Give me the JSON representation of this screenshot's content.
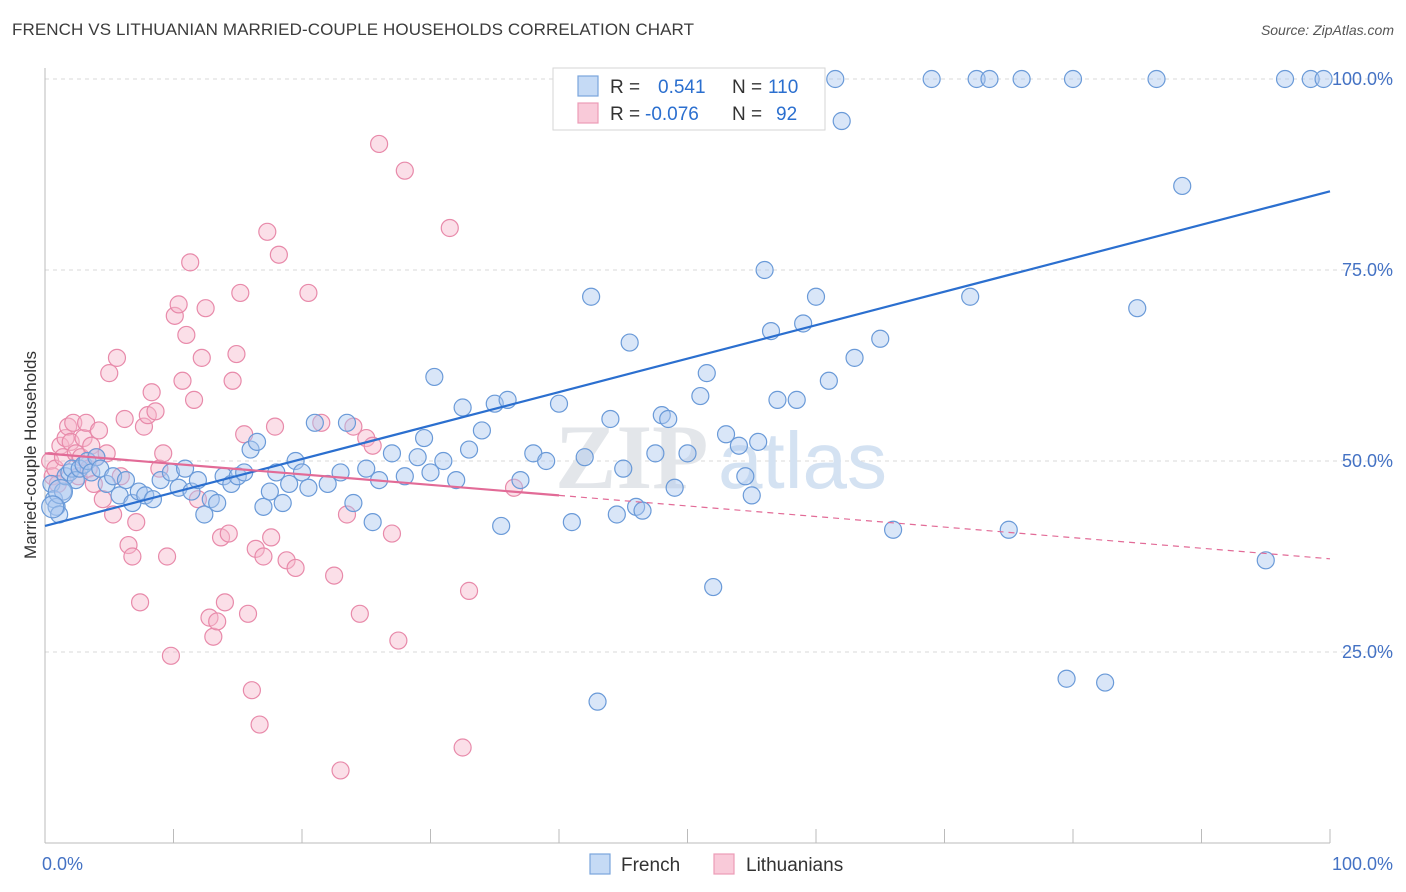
{
  "title": "FRENCH VS LITHUANIAN MARRIED-COUPLE HOUSEHOLDS CORRELATION CHART",
  "source": "Source: ZipAtlas.com",
  "watermark": {
    "zip": "ZIP",
    "atlas": "atlas"
  },
  "legend_top": {
    "french": {
      "r_label": "R =",
      "r_value": "0.541",
      "n_label": "N =",
      "n_value": "110"
    },
    "lithuanians": {
      "r_label": "R =",
      "r_value": "-0.076",
      "n_label": "N =",
      "n_value": "92"
    }
  },
  "legend_bottom": {
    "french": "French",
    "lithuanians": "Lithuanians"
  },
  "colors": {
    "french_fill": "#aac8f0",
    "french_stroke": "#6a9ad8",
    "french_line": "#2b6fcf",
    "lith_fill": "#f6b8cc",
    "lith_stroke": "#e88aaa",
    "lith_line": "#e26b97",
    "tick_text": "#4472c4",
    "grid": "#d8d8d8"
  },
  "chart_data": {
    "type": "scatter",
    "title": "FRENCH VS LITHUANIAN MARRIED-COUPLE HOUSEHOLDS CORRELATION CHART",
    "xlabel": "",
    "ylabel": "Married-couple Households",
    "xlim": [
      0,
      100
    ],
    "ylim": [
      0,
      102
    ],
    "x_tick_labels": [
      "0.0%",
      "100.0%"
    ],
    "y_ticks": [
      25,
      50,
      75,
      100
    ],
    "y_tick_labels": [
      "25.0%",
      "50.0%",
      "75.0%",
      "100.0%"
    ],
    "grid": true,
    "series": [
      {
        "name": "French",
        "r": 0.541,
        "n": 110,
        "trend": {
          "x": [
            0,
            100
          ],
          "y": [
            41.5,
            85.3
          ],
          "style": "solid"
        },
        "points": [
          [
            0.5,
            47
          ],
          [
            0.7,
            45
          ],
          [
            0.9,
            44
          ],
          [
            1.1,
            43
          ],
          [
            1.4,
            46
          ],
          [
            1.6,
            48
          ],
          [
            1.9,
            48.5
          ],
          [
            2.1,
            49
          ],
          [
            2.4,
            47.5
          ],
          [
            2.7,
            49
          ],
          [
            3.0,
            49.5
          ],
          [
            3.3,
            50
          ],
          [
            3.6,
            48.5
          ],
          [
            4.0,
            50.5
          ],
          [
            4.3,
            49
          ],
          [
            4.8,
            47
          ],
          [
            5.3,
            48
          ],
          [
            5.8,
            45.5
          ],
          [
            6.3,
            47.5
          ],
          [
            6.8,
            44.5
          ],
          [
            7.3,
            46
          ],
          [
            7.8,
            45.5
          ],
          [
            8.4,
            45
          ],
          [
            9.0,
            47.5
          ],
          [
            9.8,
            48.5
          ],
          [
            10.4,
            46.5
          ],
          [
            10.9,
            49
          ],
          [
            11.4,
            46
          ],
          [
            11.9,
            47.5
          ],
          [
            12.4,
            43
          ],
          [
            12.9,
            45
          ],
          [
            13.4,
            44.5
          ],
          [
            13.9,
            48
          ],
          [
            14.5,
            47
          ],
          [
            15.0,
            48
          ],
          [
            15.5,
            48.5
          ],
          [
            16.0,
            51.5
          ],
          [
            16.5,
            52.5
          ],
          [
            17.0,
            44
          ],
          [
            17.5,
            46
          ],
          [
            18.0,
            48.5
          ],
          [
            18.5,
            44.5
          ],
          [
            19.0,
            47
          ],
          [
            19.5,
            50
          ],
          [
            20.0,
            48.5
          ],
          [
            20.5,
            46.5
          ],
          [
            21.0,
            55
          ],
          [
            22.0,
            47
          ],
          [
            23.0,
            48.5
          ],
          [
            23.5,
            55
          ],
          [
            24.0,
            44.5
          ],
          [
            25.0,
            49
          ],
          [
            25.5,
            42
          ],
          [
            26.0,
            47.5
          ],
          [
            27.0,
            51
          ],
          [
            28.0,
            48
          ],
          [
            29.0,
            50.5
          ],
          [
            29.5,
            53
          ],
          [
            30.0,
            48.5
          ],
          [
            30.3,
            61
          ],
          [
            31.0,
            50
          ],
          [
            32.0,
            47.5
          ],
          [
            32.5,
            57
          ],
          [
            33.0,
            51.5
          ],
          [
            34.0,
            54
          ],
          [
            35.0,
            57.5
          ],
          [
            35.5,
            41.5
          ],
          [
            36.0,
            58
          ],
          [
            37.0,
            47.5
          ],
          [
            38.0,
            51
          ],
          [
            39.0,
            50
          ],
          [
            40.0,
            57.5
          ],
          [
            41.0,
            42
          ],
          [
            42.0,
            50.5
          ],
          [
            42.5,
            71.5
          ],
          [
            43.0,
            18.5
          ],
          [
            44.0,
            55.5
          ],
          [
            44.5,
            43
          ],
          [
            45.0,
            49
          ],
          [
            45.5,
            65.5
          ],
          [
            46.0,
            44
          ],
          [
            46.5,
            43.5
          ],
          [
            47.5,
            51
          ],
          [
            48.0,
            56
          ],
          [
            48.5,
            55.5
          ],
          [
            49.0,
            46.5
          ],
          [
            50.0,
            51
          ],
          [
            51.0,
            58.5
          ],
          [
            51.5,
            61.5
          ],
          [
            52.0,
            33.5
          ],
          [
            53.0,
            53.5
          ],
          [
            54.0,
            52
          ],
          [
            54.5,
            48
          ],
          [
            55.0,
            45.5
          ],
          [
            55.5,
            52.5
          ],
          [
            56.0,
            75
          ],
          [
            56.5,
            67
          ],
          [
            57.0,
            58
          ],
          [
            58.5,
            58
          ],
          [
            59.0,
            68
          ],
          [
            60.0,
            71.5
          ],
          [
            61.0,
            60.5
          ],
          [
            61.5,
            100
          ],
          [
            62.0,
            94.5
          ],
          [
            63.0,
            63.5
          ],
          [
            65.0,
            66
          ],
          [
            66.0,
            41
          ],
          [
            69.0,
            100
          ],
          [
            72.0,
            71.5
          ],
          [
            72.5,
            100
          ],
          [
            73.5,
            100
          ],
          [
            75.0,
            41
          ],
          [
            76.0,
            100
          ],
          [
            79.5,
            21.5
          ],
          [
            80.0,
            100
          ],
          [
            82.5,
            21
          ],
          [
            85.0,
            70
          ],
          [
            86.5,
            100
          ],
          [
            88.5,
            86
          ],
          [
            95.0,
            37
          ],
          [
            96.5,
            100
          ],
          [
            98.5,
            100
          ],
          [
            99.5,
            100
          ]
        ]
      },
      {
        "name": "Lithuanians",
        "r": -0.076,
        "n": 92,
        "trend": {
          "x": [
            0,
            40,
            100
          ],
          "y": [
            51,
            45.5,
            37.2
          ],
          "style": "solid-then-dashed"
        },
        "points": [
          [
            0.4,
            50
          ],
          [
            0.6,
            48
          ],
          [
            0.8,
            49
          ],
          [
            1.0,
            47
          ],
          [
            1.2,
            52
          ],
          [
            1.4,
            50.5
          ],
          [
            1.6,
            53
          ],
          [
            1.8,
            54.5
          ],
          [
            2.0,
            52.5
          ],
          [
            2.2,
            55
          ],
          [
            2.4,
            51
          ],
          [
            2.6,
            48
          ],
          [
            2.8,
            50.5
          ],
          [
            3.0,
            53
          ],
          [
            3.2,
            55
          ],
          [
            3.4,
            49
          ],
          [
            3.6,
            52
          ],
          [
            3.8,
            47
          ],
          [
            4.0,
            50.5
          ],
          [
            4.2,
            54
          ],
          [
            4.5,
            45
          ],
          [
            4.8,
            51
          ],
          [
            5.0,
            61.5
          ],
          [
            5.3,
            43
          ],
          [
            5.6,
            63.5
          ],
          [
            5.9,
            48
          ],
          [
            6.2,
            55.5
          ],
          [
            6.5,
            39
          ],
          [
            6.8,
            37.5
          ],
          [
            7.1,
            42
          ],
          [
            7.4,
            31.5
          ],
          [
            7.7,
            54.5
          ],
          [
            8.0,
            56
          ],
          [
            8.3,
            59
          ],
          [
            8.6,
            56.5
          ],
          [
            8.9,
            49
          ],
          [
            9.2,
            51
          ],
          [
            9.5,
            37.5
          ],
          [
            9.8,
            24.5
          ],
          [
            10.1,
            69
          ],
          [
            10.4,
            70.5
          ],
          [
            10.7,
            60.5
          ],
          [
            11.0,
            66.5
          ],
          [
            11.3,
            76
          ],
          [
            11.6,
            58
          ],
          [
            11.9,
            45
          ],
          [
            12.2,
            63.5
          ],
          [
            12.5,
            70
          ],
          [
            12.8,
            29.5
          ],
          [
            13.1,
            27
          ],
          [
            13.4,
            29
          ],
          [
            13.7,
            40
          ],
          [
            14.0,
            31.5
          ],
          [
            14.3,
            40.5
          ],
          [
            14.6,
            60.5
          ],
          [
            14.9,
            64
          ],
          [
            15.2,
            72
          ],
          [
            15.5,
            53.5
          ],
          [
            15.8,
            30
          ],
          [
            16.1,
            20
          ],
          [
            16.4,
            38.5
          ],
          [
            16.7,
            15.5
          ],
          [
            17.0,
            37.5
          ],
          [
            17.3,
            80
          ],
          [
            17.6,
            40
          ],
          [
            17.9,
            54.5
          ],
          [
            18.2,
            77
          ],
          [
            18.8,
            37
          ],
          [
            19.5,
            36
          ],
          [
            20.5,
            72
          ],
          [
            21.5,
            55
          ],
          [
            22.5,
            35
          ],
          [
            23.0,
            9.5
          ],
          [
            23.5,
            43
          ],
          [
            24.0,
            54.5
          ],
          [
            24.5,
            30
          ],
          [
            25.0,
            53
          ],
          [
            25.5,
            52
          ],
          [
            26.0,
            91.5
          ],
          [
            27.0,
            40.5
          ],
          [
            27.5,
            26.5
          ],
          [
            28.0,
            88
          ],
          [
            31.5,
            80.5
          ],
          [
            32.5,
            12.5
          ],
          [
            33.0,
            33
          ],
          [
            36.5,
            46.5
          ]
        ]
      }
    ]
  }
}
